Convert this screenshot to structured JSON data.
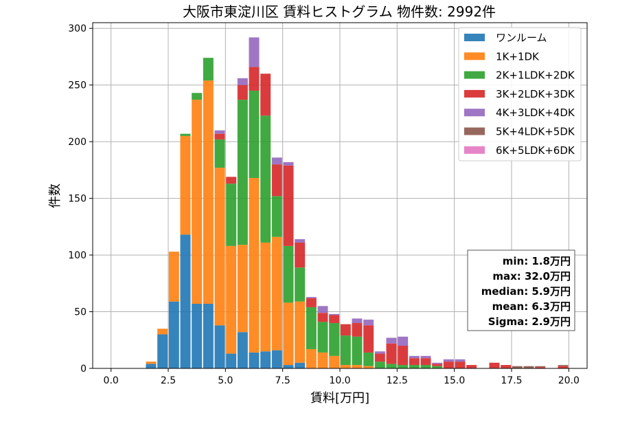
{
  "chart_data": {
    "type": "bar",
    "stacked": true,
    "title": "大阪市東淀川区 賃料ヒストグラム 物件数: 2992件",
    "xlabel": "賃料[万円]",
    "ylabel": "件数",
    "xlim": [
      -0.8,
      20.8
    ],
    "ylim": [
      0,
      305
    ],
    "xticks": [
      0.0,
      2.5,
      5.0,
      7.5,
      10.0,
      12.5,
      15.0,
      17.5,
      20.0
    ],
    "xtick_labels": [
      "0.0",
      "2.5",
      "5.0",
      "7.5",
      "10.0",
      "12.5",
      "15.0",
      "17.5",
      "20.0"
    ],
    "yticks": [
      0,
      50,
      100,
      150,
      200,
      250,
      300
    ],
    "ytick_labels": [
      "0",
      "50",
      "100",
      "150",
      "200",
      "250",
      "300"
    ],
    "grid": true,
    "legend_position": "top-right",
    "bin_width": 0.5,
    "bin_starts": [
      1.5,
      2.0,
      2.5,
      3.0,
      3.5,
      4.0,
      4.5,
      5.0,
      5.5,
      6.0,
      6.5,
      7.0,
      7.5,
      8.0,
      8.5,
      9.0,
      9.5,
      10.0,
      10.5,
      11.0,
      11.5,
      12.0,
      12.5,
      13.0,
      13.5,
      14.0,
      14.5,
      15.0,
      15.5,
      16.0,
      16.5,
      17.0,
      17.5,
      18.0,
      18.5,
      19.0,
      19.5
    ],
    "series": [
      {
        "name": "ワンルーム",
        "color": "#1f77b4",
        "values": [
          4,
          30,
          59,
          118,
          57,
          57,
          38,
          13,
          32,
          14,
          15,
          16,
          3,
          5,
          0,
          0,
          0,
          0,
          0,
          0,
          0,
          0,
          0,
          0,
          0,
          0,
          0,
          0,
          0,
          0,
          0,
          0,
          0,
          0,
          0,
          0,
          0
        ]
      },
      {
        "name": "1K+1DK",
        "color": "#ff7f0e",
        "values": [
          2,
          5,
          44,
          87,
          180,
          197,
          139,
          95,
          77,
          154,
          96,
          100,
          55,
          54,
          17,
          14,
          11,
          3,
          3,
          2,
          0,
          0,
          0,
          0,
          0,
          0,
          0,
          0,
          0,
          0,
          0,
          0,
          0,
          0,
          0,
          0,
          0
        ]
      },
      {
        "name": "2K+1LDK+2DK",
        "color": "#2ca02c",
        "values": [
          0,
          0,
          0,
          2,
          6,
          20,
          25,
          55,
          128,
          77,
          112,
          36,
          50,
          30,
          37,
          27,
          29,
          26,
          25,
          12,
          6,
          4,
          3,
          3,
          3,
          2,
          0,
          0,
          0,
          0,
          0,
          0,
          0,
          0,
          0,
          0,
          0
        ]
      },
      {
        "name": "3K+2LDK+3DK",
        "color": "#d62728",
        "values": [
          0,
          0,
          0,
          0,
          0,
          0,
          5,
          6,
          13,
          21,
          37,
          28,
          71,
          22,
          8,
          8,
          7,
          10,
          12,
          24,
          7,
          18,
          17,
          6,
          6,
          2,
          6,
          6,
          3,
          0,
          5,
          3,
          0,
          0,
          1,
          0,
          2
        ]
      },
      {
        "name": "4K+3LDK+4DK",
        "color": "#9467bd",
        "values": [
          0,
          0,
          0,
          0,
          0,
          0,
          3,
          0,
          6,
          26,
          0,
          6,
          3,
          3,
          1,
          6,
          1,
          0,
          4,
          5,
          2,
          5,
          8,
          2,
          2,
          1,
          2,
          2,
          0,
          0,
          0,
          0,
          0,
          0,
          0,
          0,
          0
        ]
      },
      {
        "name": "5K+4LDK+5DK",
        "color": "#8c564b",
        "values": [
          0,
          0,
          0,
          0,
          0,
          0,
          0,
          0,
          0,
          0,
          0,
          0,
          0,
          0,
          0,
          0,
          0,
          0,
          0,
          0,
          0,
          0,
          0,
          0,
          0,
          0,
          0,
          0,
          0,
          0,
          0,
          0,
          2,
          2,
          1,
          0,
          1
        ]
      },
      {
        "name": "6K+5LDK+6DK",
        "color": "#e377c2",
        "values": [
          0,
          0,
          0,
          0,
          0,
          0,
          0,
          0,
          0,
          0,
          0,
          0,
          0,
          0,
          0,
          0,
          0,
          0,
          0,
          0,
          0,
          0,
          0,
          0,
          0,
          0,
          0,
          0,
          0,
          0,
          0,
          0,
          0,
          0,
          0,
          0,
          0
        ]
      }
    ],
    "stats_box": [
      "min: 1.8万円",
      "max: 32.0万円",
      "median: 5.9万円",
      "mean: 6.3万円",
      "Sigma: 2.9万円"
    ]
  }
}
